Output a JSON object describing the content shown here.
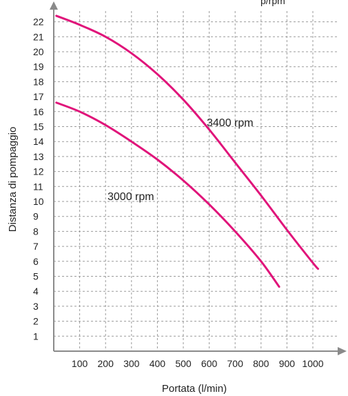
{
  "header_fragment": "p/rpm",
  "chart_data": {
    "type": "line",
    "xlabel": "Portata (l/min)",
    "ylabel": "Distanza di pompaggio",
    "x_ticks": [
      100,
      200,
      300,
      400,
      500,
      600,
      700,
      800,
      900,
      1000
    ],
    "y_ticks": [
      1,
      2,
      3,
      4,
      5,
      6,
      7,
      8,
      9,
      10,
      11,
      12,
      13,
      14,
      15,
      16,
      17,
      18,
      19,
      20,
      21,
      22
    ],
    "xlim": [
      0,
      1130
    ],
    "ylim": [
      0,
      23
    ],
    "grid": true,
    "line_color": "#e0147a",
    "series": [
      {
        "name": "3400 rpm",
        "x": [
          10,
          100,
          200,
          300,
          400,
          500,
          600,
          700,
          800,
          900,
          1000,
          1020
        ],
        "y": [
          22.4,
          21.8,
          21.0,
          19.9,
          18.5,
          16.8,
          14.8,
          12.6,
          10.4,
          8.1,
          5.9,
          5.5
        ]
      },
      {
        "name": "3000 rpm",
        "x": [
          10,
          100,
          200,
          300,
          400,
          500,
          600,
          700,
          800,
          870
        ],
        "y": [
          16.6,
          16.0,
          15.1,
          14.0,
          12.8,
          11.4,
          9.8,
          8.0,
          6.0,
          4.3
        ]
      }
    ]
  }
}
